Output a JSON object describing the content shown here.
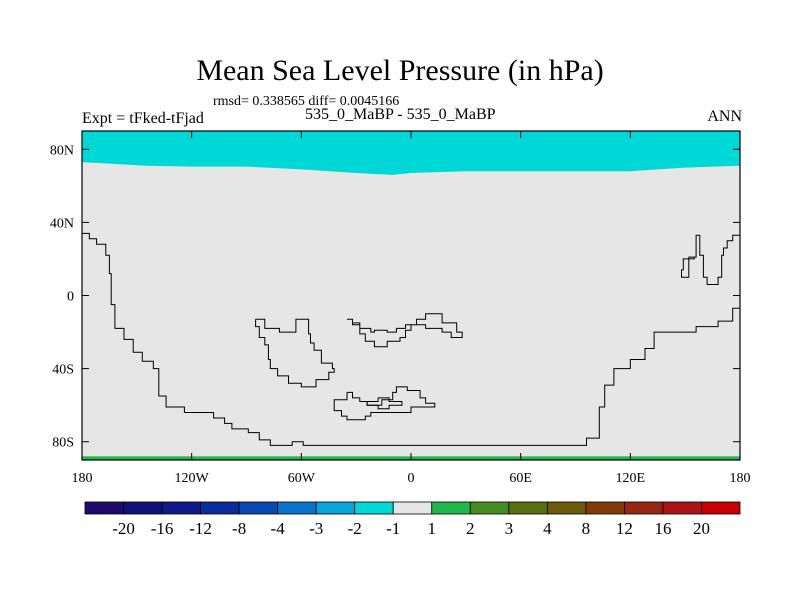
{
  "chart_data": {
    "type": "heatmap",
    "title": "Mean Sea Level Pressure (in hPa)",
    "stats_text": "rmsd= 0.338565 diff= 0.0045166",
    "left_label": "Expt = tFked-tFjad",
    "center_label": "535_0_MaBP - 535_0_MaBP",
    "right_label": "ANN",
    "x_ticks": [
      {
        "value": -180,
        "label": "180"
      },
      {
        "value": -120,
        "label": "120W"
      },
      {
        "value": -60,
        "label": "60W"
      },
      {
        "value": 0,
        "label": "0"
      },
      {
        "value": 60,
        "label": "60E"
      },
      {
        "value": 120,
        "label": "120E"
      },
      {
        "value": 180,
        "label": "180"
      }
    ],
    "y_ticks": [
      {
        "value": 80,
        "label": "80N"
      },
      {
        "value": 40,
        "label": "40N"
      },
      {
        "value": 0,
        "label": "0"
      },
      {
        "value": -40,
        "label": "40S"
      },
      {
        "value": -80,
        "label": "80S"
      }
    ],
    "xlim": [
      -180,
      180
    ],
    "ylim": [
      -90,
      90
    ],
    "background_bin_color": "#e6e6e6",
    "field_regions": [
      {
        "name": "north-polar-band",
        "range": "-2 to -1",
        "color": "#00d8d8",
        "lon": [
          -180,
          -163,
          -145,
          -120,
          -90,
          -60,
          -30,
          -10,
          0,
          30,
          60,
          90,
          120,
          150,
          180
        ],
        "lat_south_edge": [
          73,
          72,
          71,
          70.5,
          70.5,
          69,
          67,
          66,
          67,
          68,
          68,
          68,
          68,
          70,
          71
        ]
      },
      {
        "name": "south-polar-strip",
        "range": "1 to 2",
        "color": "#1fb84a",
        "lat_range": [
          -90,
          -88
        ]
      }
    ],
    "colorbar": {
      "labels": [
        "-20",
        "-16",
        "-12",
        "-8",
        "-4",
        "-3",
        "-2",
        "-1",
        "1",
        "2",
        "3",
        "4",
        "8",
        "12",
        "16",
        "20"
      ],
      "colors": [
        "#1f0a6e",
        "#0f1278",
        "#0f1a88",
        "#0b2c9c",
        "#0a48b4",
        "#0a74cc",
        "#0aa4d8",
        "#00d8d8",
        "#e6e6e6",
        "#1fb84a",
        "#468c22",
        "#5a6e12",
        "#6e5a0a",
        "#823c0a",
        "#962812",
        "#aa1414",
        "#c80000"
      ]
    },
    "outlines": [
      [
        [
          -180,
          34
        ],
        [
          -176,
          34
        ],
        [
          -176,
          31
        ],
        [
          -172,
          31
        ],
        [
          -172,
          28
        ],
        [
          -167,
          28
        ],
        [
          -167,
          25
        ],
        [
          -167,
          22
        ],
        [
          -165,
          22
        ],
        [
          -165,
          12
        ],
        [
          -164,
          12
        ],
        [
          -164,
          -5
        ],
        [
          -162,
          -5
        ],
        [
          -162,
          -18
        ],
        [
          -157,
          -18
        ],
        [
          -157,
          -24
        ],
        [
          -152,
          -24
        ],
        [
          -152,
          -31
        ],
        [
          -147,
          -31
        ],
        [
          -147,
          -36
        ],
        [
          -141,
          -36
        ],
        [
          -141,
          -40
        ],
        [
          -138,
          -40
        ],
        [
          -138,
          -55
        ],
        [
          -134,
          -55
        ],
        [
          -134,
          -61
        ],
        [
          -124,
          -61
        ],
        [
          -124,
          -64
        ],
        [
          -108,
          -64
        ],
        [
          -108,
          -67
        ],
        [
          -102,
          -67
        ],
        [
          -102,
          -70
        ],
        [
          -98,
          -70
        ],
        [
          -98,
          -73
        ],
        [
          -89,
          -73
        ],
        [
          -89,
          -75
        ],
        [
          -83,
          -75
        ],
        [
          -83,
          -79
        ],
        [
          -77,
          -79
        ],
        [
          -77,
          -82
        ],
        [
          -65,
          -82
        ],
        [
          -65,
          -80
        ],
        [
          -59,
          -80
        ],
        [
          -59,
          -82
        ],
        [
          96,
          -82
        ],
        [
          96,
          -78
        ],
        [
          103,
          -78
        ],
        [
          103,
          -61
        ],
        [
          106,
          -61
        ],
        [
          106,
          -49
        ],
        [
          111,
          -49
        ],
        [
          111,
          -40
        ],
        [
          120,
          -40
        ],
        [
          120,
          -35
        ],
        [
          128,
          -35
        ],
        [
          128,
          -29
        ],
        [
          133,
          -29
        ],
        [
          133,
          -20
        ],
        [
          156,
          -20
        ],
        [
          156,
          -17
        ],
        [
          168,
          -17
        ],
        [
          168,
          -14
        ],
        [
          176,
          -14
        ],
        [
          176,
          -7
        ],
        [
          180,
          -7
        ]
      ],
      [
        [
          180,
          33
        ],
        [
          176,
          33
        ],
        [
          176,
          30
        ],
        [
          173,
          30
        ],
        [
          173,
          26
        ],
        [
          171,
          26
        ],
        [
          171,
          22
        ],
        [
          170,
          22
        ],
        [
          170,
          10
        ],
        [
          168,
          10
        ],
        [
          168,
          6
        ],
        [
          162,
          6
        ],
        [
          162,
          10
        ],
        [
          160,
          10
        ],
        [
          160,
          22
        ],
        [
          158,
          22
        ],
        [
          158,
          33
        ],
        [
          156,
          33
        ],
        [
          156,
          21
        ],
        [
          152,
          21
        ],
        [
          152,
          10
        ],
        [
          148,
          10
        ],
        [
          148,
          14
        ],
        [
          149,
          14
        ],
        [
          149,
          20
        ],
        [
          155,
          20
        ],
        [
          155,
          21
        ],
        [
          156,
          21
        ],
        [
          156,
          33
        ],
        [
          158,
          33
        ],
        [
          158,
          22
        ],
        [
          160,
          22
        ],
        [
          160,
          10
        ],
        [
          162,
          10
        ],
        [
          162,
          6
        ],
        [
          168,
          6
        ],
        [
          168,
          10
        ],
        [
          170,
          10
        ],
        [
          170,
          22
        ],
        [
          171,
          22
        ],
        [
          171,
          26
        ],
        [
          173,
          26
        ],
        [
          173,
          30
        ],
        [
          176,
          30
        ],
        [
          176,
          33
        ],
        [
          180,
          33
        ]
      ],
      [
        [
          -85,
          -13
        ],
        [
          -80,
          -13
        ],
        [
          -80,
          -18
        ],
        [
          -72,
          -18
        ],
        [
          -72,
          -20
        ],
        [
          -63,
          -20
        ],
        [
          -63,
          -13
        ],
        [
          -56,
          -13
        ],
        [
          -56,
          -21
        ],
        [
          -55,
          -21
        ],
        [
          -55,
          -26
        ],
        [
          -53,
          -26
        ],
        [
          -53,
          -30
        ],
        [
          -49,
          -30
        ],
        [
          -49,
          -37
        ],
        [
          -43,
          -37
        ],
        [
          -43,
          -40
        ],
        [
          -42,
          -40
        ],
        [
          -42,
          -42
        ],
        [
          -45,
          -42
        ],
        [
          -45,
          -46
        ],
        [
          -52,
          -46
        ],
        [
          -52,
          -50
        ],
        [
          -60,
          -50
        ],
        [
          -60,
          -48
        ],
        [
          -67,
          -48
        ],
        [
          -67,
          -44
        ],
        [
          -73,
          -44
        ],
        [
          -73,
          -40
        ],
        [
          -77,
          -40
        ],
        [
          -77,
          -35
        ],
        [
          -78,
          -35
        ],
        [
          -78,
          -27
        ],
        [
          -80,
          -27
        ],
        [
          -80,
          -23
        ],
        [
          -83,
          -23
        ],
        [
          -83,
          -17
        ],
        [
          -85,
          -17
        ],
        [
          -85,
          -13
        ]
      ],
      [
        [
          -35,
          -13
        ],
        [
          -32,
          -13
        ],
        [
          -32,
          -16
        ],
        [
          -28,
          -16
        ],
        [
          -28,
          -21
        ],
        [
          -25,
          -21
        ],
        [
          -25,
          -25
        ],
        [
          -20,
          -25
        ],
        [
          -20,
          -28
        ],
        [
          -13,
          -28
        ],
        [
          -13,
          -25
        ],
        [
          -6,
          -25
        ],
        [
          -6,
          -23
        ],
        [
          -3,
          -23
        ],
        [
          -3,
          -19
        ],
        [
          0,
          -19
        ],
        [
          0,
          -16
        ],
        [
          3,
          -16
        ],
        [
          3,
          -13
        ],
        [
          8,
          -13
        ],
        [
          8,
          -10
        ],
        [
          17,
          -10
        ],
        [
          17,
          -15
        ],
        [
          25,
          -15
        ],
        [
          25,
          -20
        ],
        [
          28,
          -20
        ],
        [
          28,
          -23
        ],
        [
          22,
          -23
        ],
        [
          22,
          -20
        ],
        [
          17,
          -20
        ],
        [
          17,
          -18
        ],
        [
          8,
          -18
        ],
        [
          8,
          -16
        ],
        [
          -3,
          -16
        ],
        [
          -3,
          -18
        ],
        [
          -8,
          -18
        ],
        [
          -8,
          -20
        ],
        [
          -13,
          -20
        ],
        [
          -13,
          -19
        ],
        [
          -20,
          -19
        ],
        [
          -20,
          -20
        ],
        [
          -22,
          -20
        ],
        [
          -22,
          -18
        ],
        [
          -28,
          -18
        ],
        [
          -28,
          -15
        ],
        [
          -32,
          -15
        ],
        [
          -32,
          -13
        ],
        [
          -35,
          -13
        ]
      ],
      [
        [
          -35,
          -53
        ],
        [
          -32,
          -53
        ],
        [
          -32,
          -56
        ],
        [
          -28,
          -56
        ],
        [
          -28,
          -58
        ],
        [
          -24,
          -58
        ],
        [
          -24,
          -60
        ],
        [
          -16,
          -60
        ],
        [
          -16,
          -57
        ],
        [
          -10,
          -57
        ],
        [
          -10,
          -53
        ],
        [
          -8,
          -53
        ],
        [
          -8,
          -50
        ],
        [
          -2,
          -50
        ],
        [
          -2,
          -52
        ],
        [
          5,
          -52
        ],
        [
          5,
          -56
        ],
        [
          8,
          -56
        ],
        [
          8,
          -59
        ],
        [
          13,
          -59
        ],
        [
          13,
          -61
        ],
        [
          0,
          -61
        ],
        [
          0,
          -64
        ],
        [
          -22,
          -64
        ],
        [
          -22,
          -66
        ],
        [
          -25,
          -66
        ],
        [
          -25,
          -68
        ],
        [
          -35,
          -68
        ],
        [
          -35,
          -66
        ],
        [
          -38,
          -66
        ],
        [
          -38,
          -63
        ],
        [
          -42,
          -63
        ],
        [
          -42,
          -57
        ],
        [
          -35,
          -57
        ],
        [
          -35,
          -53
        ]
      ],
      [
        [
          -18,
          -56
        ],
        [
          -12,
          -56
        ],
        [
          -12,
          -58
        ],
        [
          -5,
          -58
        ],
        [
          -5,
          -60
        ],
        [
          -12,
          -60
        ],
        [
          -12,
          -62
        ],
        [
          -18,
          -62
        ],
        [
          -18,
          -60
        ],
        [
          -24,
          -60
        ],
        [
          -24,
          -58
        ],
        [
          -18,
          -58
        ],
        [
          -18,
          -56
        ]
      ]
    ]
  }
}
